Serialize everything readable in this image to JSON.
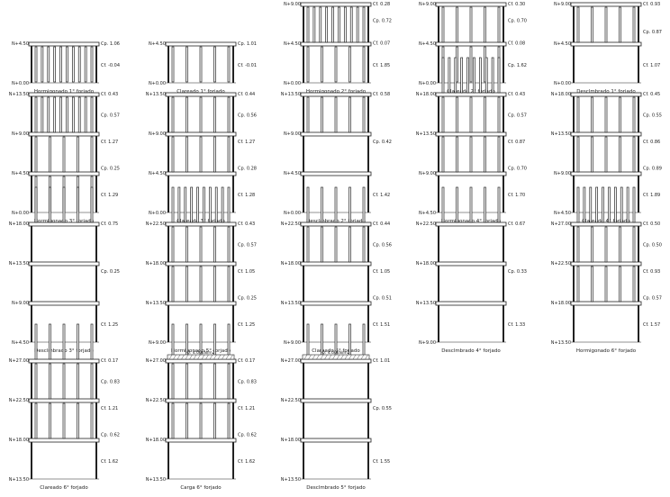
{
  "stages": [
    {
      "caption": "Hormigonado 1° forjado",
      "levels": [
        "N+0.00",
        "N+4.50"
      ],
      "shoring": [
        "dense"
      ],
      "coefs": [
        "Cf. -0.04",
        "Cp. 1.06"
      ]
    },
    {
      "caption": "Clareado 1° forjado",
      "levels": [
        "N+0.00",
        "N+4.50"
      ],
      "shoring": [
        "sparse"
      ],
      "coefs": [
        "Cf. -0.01",
        "Cp. 1.01"
      ]
    },
    {
      "caption": "Hormigonado 2° forjado",
      "levels": [
        "N+0.00",
        "N+4.50",
        "N+9.00"
      ],
      "shoring": [
        "sparse",
        "dense"
      ],
      "coefs": [
        "Cf. 1.85",
        "Cf. 0.07",
        "Cp. 0.72",
        "Cf. 0.28"
      ]
    },
    {
      "caption": "Clareado 2° forjado",
      "levels": [
        "N+0.00",
        "N+4.50",
        "N+9.00"
      ],
      "shoring": [
        "sparse",
        "sparse"
      ],
      "coefs": [
        "Cp. 1.62",
        "Cf. 0.08",
        "Cp. 0.70",
        "Cf. 0.30"
      ]
    },
    {
      "caption": "Desclmbrado 1° forjado",
      "levels": [
        "N+0.00",
        "N+4.50",
        "N+9.00"
      ],
      "shoring": [
        "none",
        "sparse"
      ],
      "coefs": [
        "Cf. 1.07",
        "Cp. 0.87",
        "Cf. 0.93"
      ]
    },
    {
      "caption": "Hormigonado 3° forjado",
      "levels": [
        "N+0.00",
        "N+4.50",
        "N+9.00",
        "N+13.50"
      ],
      "shoring": [
        "sparse",
        "sparse",
        "dense"
      ],
      "coefs": [
        "Cf. 1.29",
        "Cp. 0.25",
        "Cf. 1.27",
        "Cp. 0.57",
        "Cf. 0.43"
      ]
    },
    {
      "caption": "Clareado 3° forjado",
      "levels": [
        "N+0.00",
        "N+4.50",
        "N+9.00",
        "N+13.50"
      ],
      "shoring": [
        "none",
        "sparse",
        "sparse"
      ],
      "coefs": [
        "Cf. 1.28",
        "Cp. 0.28",
        "Cf. 1.27",
        "Cp. 0.56",
        "Cf. 0.44"
      ]
    },
    {
      "caption": "Desclmbrado 2° forjado",
      "levels": [
        "N+0.00",
        "N+4.50",
        "N+9.00",
        "N+13.50"
      ],
      "shoring": [
        "none",
        "none",
        "sparse"
      ],
      "coefs": [
        "Cf. 1.42",
        "Cp. 0.42",
        "Cf. 0.58"
      ]
    },
    {
      "caption": "Hormigonado 4° forjado",
      "levels": [
        "N+4.50",
        "N+9.00",
        "N+13.50",
        "N+18.00"
      ],
      "shoring": [
        "none",
        "sparse",
        "sparse",
        "dense"
      ],
      "coefs": [
        "Cf. 1.70",
        "Cp. 0.70",
        "Cf. 0.87",
        "Cp. 0.57",
        "Cf. 0.43"
      ]
    },
    {
      "caption": "Clareado 4° forjado",
      "levels": [
        "N+4.50",
        "N+9.00",
        "N+13.50",
        "N+18.00"
      ],
      "shoring": [
        "none",
        "sparse",
        "sparse"
      ],
      "coefs": [
        "Cf. 1.89",
        "Cp. 0.89",
        "Cf. 0.86",
        "Cp. 0.55",
        "Cf. 0.45"
      ]
    },
    {
      "caption": "Desclmbrado 3° forjado",
      "levels": [
        "N+4.50",
        "N+9.00",
        "N+13.50",
        "N+18.00"
      ],
      "shoring": [
        "none",
        "none",
        "none",
        "sparse"
      ],
      "coefs": [
        "Cf. 1.25",
        "Cp. 0.25",
        "Cf. 0.75"
      ]
    },
    {
      "caption": "Hormigonado 5° forjado",
      "levels": [
        "N+9.00",
        "N+13.50",
        "N+18.00",
        "N+22.50"
      ],
      "shoring": [
        "none",
        "sparse",
        "sparse",
        "dense"
      ],
      "coefs": [
        "Cf. 1.25",
        "Cp. 0.25",
        "Cf. 1.05",
        "Cp. 0.57",
        "Cf. 0.43"
      ]
    },
    {
      "caption": "Clareado 5° forjado",
      "levels": [
        "N+9.00",
        "N+13.50",
        "N+18.00",
        "N+22.50"
      ],
      "shoring": [
        "none",
        "none",
        "sparse",
        "sparse"
      ],
      "coefs": [
        "Cf. 1.51",
        "Cp. 0.51",
        "Cf. 1.05",
        "Cp. 0.56",
        "Cf. 0.44"
      ]
    },
    {
      "caption": "Desclmbrado 4° forjado",
      "levels": [
        "N+9.00",
        "N+13.50",
        "N+18.00",
        "N+22.50"
      ],
      "shoring": [
        "none",
        "none",
        "none",
        "sparse"
      ],
      "coefs": [
        "Cf. 1.33",
        "Cp. 0.33",
        "Cf. 0.67"
      ]
    },
    {
      "caption": "Hormigonado 6° forjado",
      "levels": [
        "N+13.50",
        "N+18.00",
        "N+22.50",
        "N+27.00"
      ],
      "shoring": [
        "none",
        "sparse",
        "sparse",
        "dense"
      ],
      "coefs": [
        "Cf. 1.57",
        "Cp. 0.57",
        "Cf. 0.93",
        "Cp. 0.50",
        "Cf. 0.50"
      ]
    },
    {
      "caption": "Clareado 6° forjado",
      "levels": [
        "N+13.50",
        "N+18.00",
        "N+22.50",
        "N+27.00"
      ],
      "shoring": [
        "none",
        "sparse",
        "sparse",
        "sparse"
      ],
      "coefs": [
        "Cf. 1.62",
        "Cp. 0.62",
        "Cf. 1.21",
        "Cp. 0.83",
        "Cf. 0.17"
      ]
    },
    {
      "caption": "Carga 6° forjado",
      "levels": [
        "N+13.50",
        "N+18.00",
        "N+22.50",
        "N+27.00"
      ],
      "shoring": [
        "none",
        "sparse",
        "sparse",
        "sparse"
      ],
      "load": "Q: 4.00kN/m2",
      "coefs": [
        "Cf. 1.62",
        "Cp. 0.62",
        "Cf. 1.21",
        "Cp. 0.83",
        "Cf. 0.17"
      ]
    },
    {
      "caption": "Desclmbrado 5° forjado",
      "levels": [
        "N+13.50",
        "N+18.00",
        "N+22.50",
        "N+27.00"
      ],
      "shoring": [
        "none",
        "none",
        "none",
        "sparse"
      ],
      "load": "Q: 4.00kN/m2",
      "coefs": [
        "Cf. 1.55",
        "Cp. 0.55",
        "Cf. 1.01"
      ]
    }
  ]
}
